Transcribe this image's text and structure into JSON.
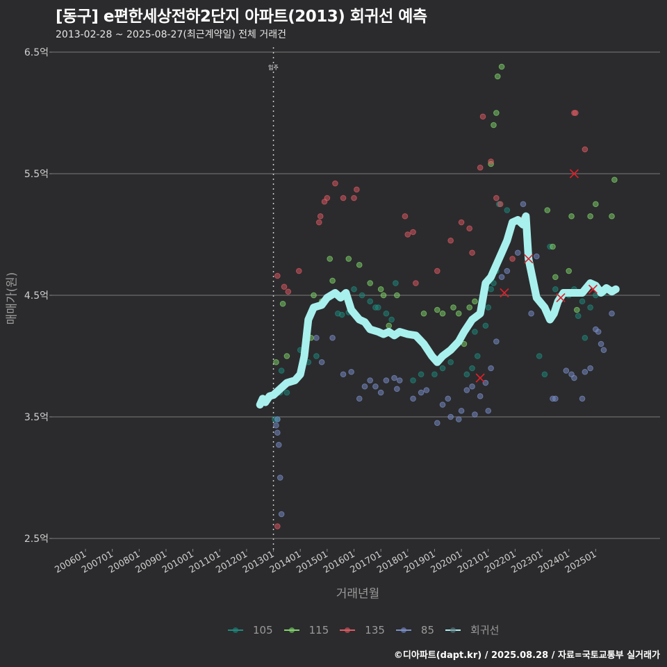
{
  "header": {
    "title": "[동구] e편한세상전하2단지 아파트(2013) 회귀선 예측",
    "subtitle": "2013-02-28 ~ 2025-08-27(최근계약일) 전체 거래건"
  },
  "axes": {
    "ylabel": "매매가(원)",
    "xlabel": "거래년월",
    "yticks": [
      {
        "label": "6.5억",
        "value": 6.5
      },
      {
        "label": "5.5억",
        "value": 5.5
      },
      {
        "label": "4.5억",
        "value": 4.5
      },
      {
        "label": "3.5억",
        "value": 3.5
      },
      {
        "label": "2.5억",
        "value": 2.5
      }
    ],
    "xticks": [
      "200601",
      "200701",
      "200801",
      "200901",
      "201001",
      "201101",
      "201201",
      "201301",
      "201401",
      "201501",
      "201601",
      "201701",
      "201801",
      "201901",
      "202001",
      "202101",
      "202201",
      "202301",
      "202401",
      "202501"
    ]
  },
  "annotation": {
    "label": "입주",
    "x": 2013.0
  },
  "legend": [
    {
      "label": "105",
      "color": "#1e8a7e"
    },
    {
      "label": "115",
      "color": "#7fd46a"
    },
    {
      "label": "135",
      "color": "#e05a63"
    },
    {
      "label": "85",
      "color": "#7a8ec9"
    },
    {
      "label": "회귀선",
      "color": "#a8f0ee"
    }
  ],
  "caption": "©디아파트(dapt.kr) / 2025.08.28 / 자료=국토교통부 실거래가",
  "chart_data": {
    "type": "scatter",
    "title": "[동구] e편한세상전하2단지 아파트(2013) 회귀선 예측",
    "subtitle": "2013-02-28 ~ 2025-08-27(최근계약일) 전체 거래건",
    "xlabel": "거래년월",
    "ylabel": "매매가(원)",
    "xlim": [
      2004.7,
      2027.4
    ],
    "ylim": [
      2.4,
      6.55
    ],
    "grid": "horizontal",
    "legend_position": "bottom",
    "series": [
      {
        "name": "105",
        "color": "#1e8a7e",
        "points": [
          [
            2013.05,
            3.48
          ],
          [
            2013.15,
            3.48
          ],
          [
            2013.25,
            3.7
          ],
          [
            2013.3,
            3.88
          ],
          [
            2013.5,
            3.7
          ],
          [
            2014.3,
            3.95
          ],
          [
            2014.0,
            4.05
          ],
          [
            2014.6,
            4.0
          ],
          [
            2015.4,
            4.35
          ],
          [
            2015.55,
            4.34
          ],
          [
            2015.8,
            4.36
          ],
          [
            2016.0,
            4.55
          ],
          [
            2016.3,
            4.5
          ],
          [
            2016.6,
            4.45
          ],
          [
            2016.8,
            4.4
          ],
          [
            2016.9,
            4.4
          ],
          [
            2017.2,
            4.35
          ],
          [
            2017.4,
            4.3
          ],
          [
            2017.55,
            4.6
          ],
          [
            2018.2,
            3.8
          ],
          [
            2018.5,
            3.85
          ],
          [
            2019.0,
            3.85
          ],
          [
            2019.3,
            3.9
          ],
          [
            2019.6,
            3.95
          ],
          [
            2019.8,
            4.1
          ],
          [
            2020.2,
            3.85
          ],
          [
            2020.4,
            3.9
          ],
          [
            2020.5,
            4.2
          ],
          [
            2020.6,
            4.0
          ],
          [
            2020.9,
            4.25
          ],
          [
            2021.0,
            4.4
          ],
          [
            2021.1,
            4.55
          ],
          [
            2021.2,
            4.6
          ],
          [
            2021.3,
            4.7
          ],
          [
            2021.4,
            5.25
          ],
          [
            2021.7,
            5.2
          ],
          [
            2022.9,
            4.0
          ],
          [
            2023.1,
            3.85
          ],
          [
            2023.3,
            4.9
          ],
          [
            2023.5,
            4.55
          ],
          [
            2023.6,
            4.45
          ],
          [
            2024.0,
            4.5
          ],
          [
            2024.2,
            4.55
          ],
          [
            2024.35,
            4.33
          ],
          [
            2024.5,
            4.45
          ],
          [
            2024.6,
            4.15
          ],
          [
            2024.8,
            4.4
          ],
          [
            2025.0,
            4.5
          ],
          [
            2025.3,
            4.52
          ]
        ]
      },
      {
        "name": "115",
        "color": "#7fd46a",
        "points": [
          [
            2013.1,
            3.95
          ],
          [
            2013.2,
            3.72
          ],
          [
            2013.35,
            4.43
          ],
          [
            2013.5,
            4.0
          ],
          [
            2014.4,
            4.15
          ],
          [
            2014.5,
            4.5
          ],
          [
            2014.8,
            4.45
          ],
          [
            2015.1,
            4.8
          ],
          [
            2015.2,
            4.62
          ],
          [
            2015.8,
            4.8
          ],
          [
            2016.2,
            4.75
          ],
          [
            2016.6,
            4.6
          ],
          [
            2017.0,
            4.55
          ],
          [
            2017.1,
            4.5
          ],
          [
            2017.3,
            4.25
          ],
          [
            2017.6,
            4.5
          ],
          [
            2018.6,
            4.35
          ],
          [
            2019.1,
            4.38
          ],
          [
            2019.3,
            4.35
          ],
          [
            2019.7,
            4.4
          ],
          [
            2019.9,
            4.35
          ],
          [
            2020.1,
            4.1
          ],
          [
            2020.3,
            4.4
          ],
          [
            2020.5,
            4.45
          ],
          [
            2021.1,
            5.58
          ],
          [
            2021.2,
            5.9
          ],
          [
            2021.3,
            6.0
          ],
          [
            2021.35,
            6.3
          ],
          [
            2021.5,
            6.38
          ],
          [
            2023.2,
            5.2
          ],
          [
            2023.4,
            4.9
          ],
          [
            2023.5,
            4.65
          ],
          [
            2024.0,
            4.7
          ],
          [
            2024.1,
            5.15
          ],
          [
            2024.3,
            4.38
          ],
          [
            2024.8,
            5.15
          ],
          [
            2025.0,
            5.25
          ],
          [
            2025.6,
            5.15
          ],
          [
            2025.7,
            5.45
          ]
        ]
      },
      {
        "name": "135",
        "color": "#e05a63",
        "points": [
          [
            2013.15,
            4.66
          ],
          [
            2013.4,
            4.57
          ],
          [
            2013.55,
            4.53
          ],
          [
            2013.95,
            4.7
          ],
          [
            2014.7,
            5.1
          ],
          [
            2014.75,
            5.15
          ],
          [
            2014.9,
            5.27
          ],
          [
            2015.0,
            5.3
          ],
          [
            2015.3,
            5.42
          ],
          [
            2015.6,
            5.3
          ],
          [
            2016.0,
            5.3
          ],
          [
            2016.1,
            5.37
          ],
          [
            2017.9,
            5.15
          ],
          [
            2018.0,
            5.0
          ],
          [
            2018.2,
            5.02
          ],
          [
            2018.3,
            4.6
          ],
          [
            2019.1,
            4.7
          ],
          [
            2019.6,
            4.95
          ],
          [
            2020.0,
            5.1
          ],
          [
            2020.3,
            5.05
          ],
          [
            2020.4,
            4.85
          ],
          [
            2020.7,
            5.55
          ],
          [
            2020.8,
            5.97
          ],
          [
            2021.1,
            5.6
          ],
          [
            2021.3,
            5.3
          ],
          [
            2021.45,
            5.25
          ],
          [
            2021.9,
            4.8
          ],
          [
            2022.3,
            5.13
          ],
          [
            2024.2,
            6.0
          ],
          [
            2024.25,
            6.0
          ],
          [
            2024.6,
            5.7
          ],
          [
            2013.15,
            2.6
          ]
        ]
      },
      {
        "name": "85",
        "color": "#7a8ec9",
        "points": [
          [
            2013.1,
            3.43
          ],
          [
            2013.15,
            3.37
          ],
          [
            2013.2,
            3.27
          ],
          [
            2013.25,
            3.0
          ],
          [
            2013.3,
            2.7
          ],
          [
            2013.15,
            3.48
          ],
          [
            2014.0,
            3.85
          ],
          [
            2014.6,
            4.15
          ],
          [
            2014.8,
            3.95
          ],
          [
            2015.2,
            4.15
          ],
          [
            2015.6,
            3.85
          ],
          [
            2015.9,
            3.87
          ],
          [
            2016.2,
            3.65
          ],
          [
            2016.4,
            3.75
          ],
          [
            2016.6,
            3.8
          ],
          [
            2016.8,
            3.75
          ],
          [
            2017.0,
            3.7
          ],
          [
            2017.2,
            3.8
          ],
          [
            2017.5,
            3.82
          ],
          [
            2017.6,
            3.73
          ],
          [
            2017.7,
            3.8
          ],
          [
            2018.2,
            3.65
          ],
          [
            2018.5,
            3.7
          ],
          [
            2018.7,
            3.72
          ],
          [
            2019.1,
            3.45
          ],
          [
            2019.3,
            3.6
          ],
          [
            2019.5,
            3.65
          ],
          [
            2019.6,
            3.5
          ],
          [
            2019.9,
            3.48
          ],
          [
            2020.0,
            3.55
          ],
          [
            2020.2,
            3.72
          ],
          [
            2020.4,
            3.75
          ],
          [
            2020.5,
            3.52
          ],
          [
            2020.7,
            3.67
          ],
          [
            2020.9,
            3.78
          ],
          [
            2021.0,
            3.55
          ],
          [
            2021.1,
            3.9
          ],
          [
            2021.3,
            4.12
          ],
          [
            2021.5,
            4.65
          ],
          [
            2021.7,
            4.7
          ],
          [
            2021.9,
            5.1
          ],
          [
            2022.1,
            4.85
          ],
          [
            2022.3,
            5.25
          ],
          [
            2022.6,
            4.35
          ],
          [
            2022.8,
            4.82
          ],
          [
            2023.4,
            3.65
          ],
          [
            2023.5,
            3.65
          ],
          [
            2023.9,
            3.88
          ],
          [
            2024.1,
            3.85
          ],
          [
            2024.2,
            3.82
          ],
          [
            2024.5,
            3.65
          ],
          [
            2024.6,
            3.87
          ],
          [
            2024.8,
            3.9
          ],
          [
            2025.0,
            4.22
          ],
          [
            2025.1,
            4.2
          ],
          [
            2025.2,
            4.1
          ],
          [
            2025.3,
            4.05
          ],
          [
            2025.6,
            4.35
          ]
        ]
      }
    ],
    "highlight_points": [
      [
        2020.7,
        3.82
      ],
      [
        2021.6,
        4.52
      ],
      [
        2022.5,
        4.8
      ],
      [
        2023.7,
        4.48
      ],
      [
        2024.2,
        5.5
      ],
      [
        2024.9,
        4.55
      ]
    ],
    "regression_line": [
      [
        2012.5,
        3.6
      ],
      [
        2012.6,
        3.65
      ],
      [
        2012.7,
        3.62
      ],
      [
        2012.85,
        3.67
      ],
      [
        2013.0,
        3.68
      ],
      [
        2013.2,
        3.72
      ],
      [
        2013.5,
        3.78
      ],
      [
        2013.8,
        3.8
      ],
      [
        2014.0,
        3.85
      ],
      [
        2014.15,
        4.0
      ],
      [
        2014.3,
        4.3
      ],
      [
        2014.5,
        4.4
      ],
      [
        2014.8,
        4.42
      ],
      [
        2015.0,
        4.48
      ],
      [
        2015.3,
        4.52
      ],
      [
        2015.5,
        4.48
      ],
      [
        2015.7,
        4.52
      ],
      [
        2015.9,
        4.38
      ],
      [
        2016.2,
        4.3
      ],
      [
        2016.4,
        4.28
      ],
      [
        2016.6,
        4.22
      ],
      [
        2016.9,
        4.2
      ],
      [
        2017.1,
        4.18
      ],
      [
        2017.3,
        4.2
      ],
      [
        2017.5,
        4.17
      ],
      [
        2017.7,
        4.2
      ],
      [
        2018.0,
        4.18
      ],
      [
        2018.3,
        4.17
      ],
      [
        2018.6,
        4.1
      ],
      [
        2018.9,
        4.0
      ],
      [
        2019.1,
        3.95
      ],
      [
        2019.3,
        4.0
      ],
      [
        2019.6,
        4.05
      ],
      [
        2019.9,
        4.12
      ],
      [
        2020.1,
        4.2
      ],
      [
        2020.4,
        4.3
      ],
      [
        2020.7,
        4.35
      ],
      [
        2020.9,
        4.6
      ],
      [
        2021.1,
        4.65
      ],
      [
        2021.3,
        4.75
      ],
      [
        2021.5,
        4.85
      ],
      [
        2021.7,
        4.95
      ],
      [
        2021.9,
        5.1
      ],
      [
        2022.1,
        5.12
      ],
      [
        2022.3,
        5.08
      ],
      [
        2022.4,
        5.15
      ],
      [
        2022.5,
        4.8
      ],
      [
        2022.8,
        4.48
      ],
      [
        2023.1,
        4.4
      ],
      [
        2023.3,
        4.3
      ],
      [
        2023.45,
        4.35
      ],
      [
        2023.6,
        4.45
      ],
      [
        2023.8,
        4.52
      ],
      [
        2024.0,
        4.52
      ],
      [
        2024.2,
        4.52
      ],
      [
        2024.5,
        4.52
      ],
      [
        2024.8,
        4.6
      ],
      [
        2025.0,
        4.58
      ],
      [
        2025.2,
        4.52
      ],
      [
        2025.4,
        4.56
      ],
      [
        2025.6,
        4.53
      ],
      [
        2025.75,
        4.55
      ]
    ],
    "annotations": [
      {
        "x": 2013.0,
        "label": "입주",
        "style": "dotted vertical line"
      }
    ]
  }
}
